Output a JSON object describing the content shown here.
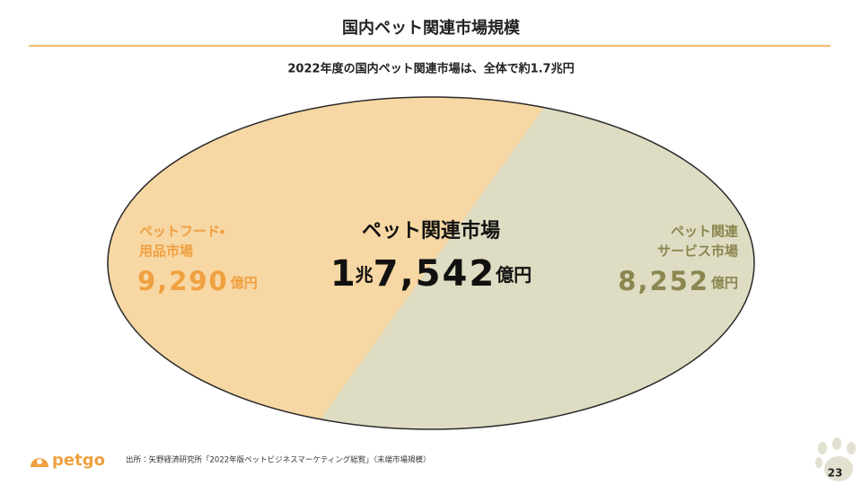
{
  "header": {
    "title": "国内ペット関連市場規模"
  },
  "subtitle": "2022年度の国内ペット関連市場は、全体で約1.7兆円",
  "center": {
    "label": "ペット関連市場",
    "value_parts": [
      "1",
      "兆",
      "7,542",
      "億円"
    ]
  },
  "segments": [
    {
      "label_lines": [
        "ペットフード・",
        "用品市場"
      ],
      "value": "9,290",
      "unit": "億円"
    },
    {
      "label_lines": [
        "ペット関連",
        "サービス市場"
      ],
      "value": "8,252",
      "unit": "億円"
    }
  ],
  "footer": {
    "logo": "petgo",
    "source": "出所：矢野経済研究所「2022年版ペットビジネスマーケティング総覧」（末端市場規模）",
    "page": "23"
  }
}
